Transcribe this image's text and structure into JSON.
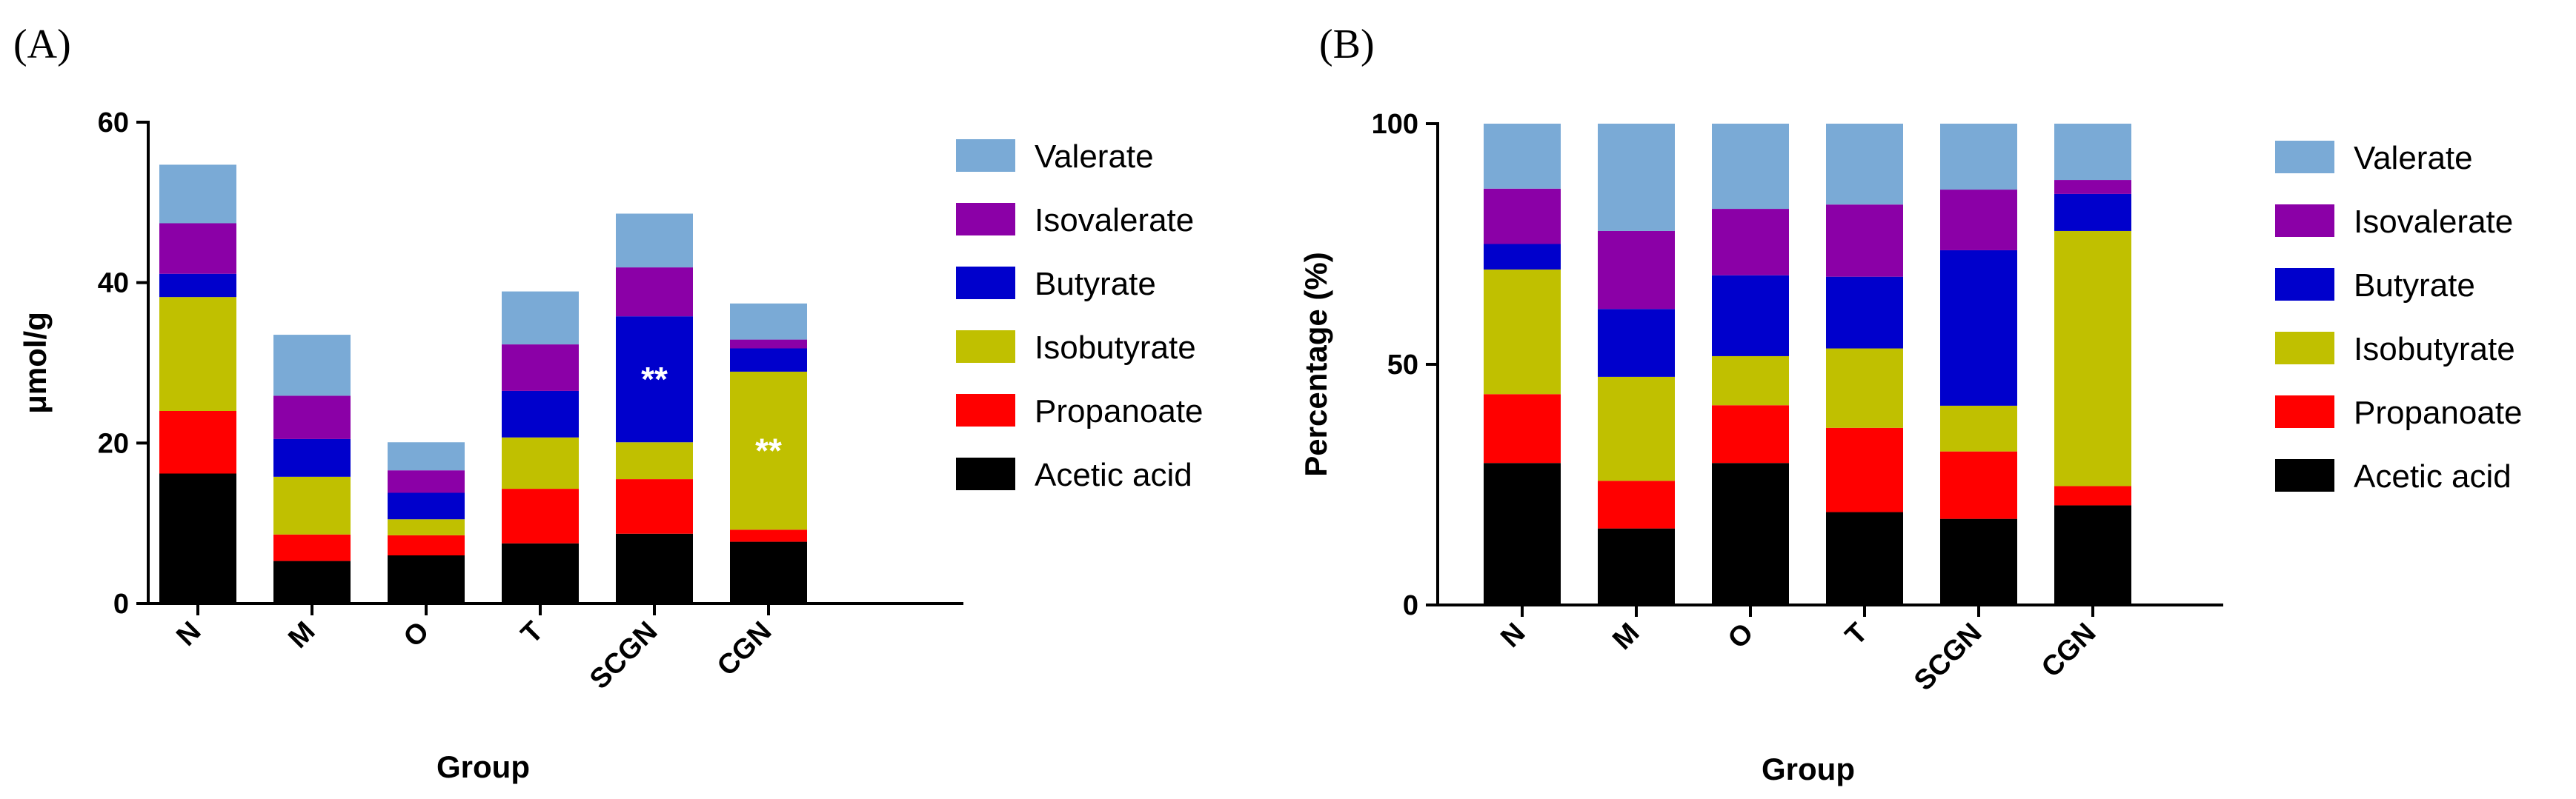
{
  "chart_data": [
    {
      "panel_label": "(A)",
      "type": "bar",
      "stacked": true,
      "categories": [
        "N",
        "M",
        "O",
        "T",
        "SCGN",
        "CGN"
      ],
      "xlabel": "Group",
      "ylabel": "μmol/g",
      "ylim": [
        0,
        60
      ],
      "yticks": [
        0,
        20,
        40,
        60
      ],
      "legend_position": "right",
      "series": [
        {
          "name": "Acetic acid",
          "color": "#000000",
          "values": [
            16.2,
            5.3,
            6.0,
            7.5,
            8.7,
            7.7
          ]
        },
        {
          "name": "Propanoate",
          "color": "#ff0000",
          "values": [
            7.8,
            3.3,
            2.5,
            6.8,
            6.8,
            1.5
          ]
        },
        {
          "name": "Isobutyrate",
          "color": "#c0c000",
          "values": [
            14.2,
            7.2,
            2.0,
            6.4,
            4.6,
            19.7
          ]
        },
        {
          "name": "Butyrate",
          "color": "#0000cc",
          "values": [
            2.9,
            4.7,
            3.3,
            5.8,
            15.7,
            2.9
          ]
        },
        {
          "name": "Isovalerate",
          "color": "#8b00a7",
          "values": [
            6.3,
            5.4,
            2.8,
            5.8,
            6.1,
            1.1
          ]
        },
        {
          "name": "Valerate",
          "color": "#7aaad6",
          "values": [
            7.3,
            7.6,
            3.5,
            6.6,
            6.7,
            4.5
          ]
        }
      ],
      "annotations": [
        {
          "text": "**",
          "category": "SCGN",
          "series": "Butyrate"
        },
        {
          "text": "**",
          "category": "CGN",
          "series": "Isobutyrate"
        }
      ]
    },
    {
      "panel_label": "(B)",
      "type": "bar",
      "stacked": true,
      "categories": [
        "N",
        "M",
        "O",
        "T",
        "SCGN",
        "CGN"
      ],
      "xlabel": "Group",
      "ylabel": "Percentage (%)",
      "ylim": [
        0,
        100
      ],
      "yticks": [
        0,
        50,
        100
      ],
      "legend_position": "right",
      "series": [
        {
          "name": "Acetic acid",
          "color": "#000000",
          "values": [
            29.5,
            15.9,
            29.5,
            19.3,
            17.9,
            20.7
          ]
        },
        {
          "name": "Propanoate",
          "color": "#ff0000",
          "values": [
            14.3,
            9.9,
            12.0,
            17.5,
            14.0,
            4.0
          ]
        },
        {
          "name": "Isobutyrate",
          "color": "#c0c000",
          "values": [
            25.9,
            21.6,
            10.2,
            16.5,
            9.5,
            53.0
          ]
        },
        {
          "name": "Butyrate",
          "color": "#0000cc",
          "values": [
            5.3,
            14.1,
            16.8,
            14.9,
            32.3,
            7.7
          ]
        },
        {
          "name": "Isovalerate",
          "color": "#8b00a7",
          "values": [
            11.5,
            16.2,
            13.8,
            15.0,
            12.6,
            2.9
          ]
        },
        {
          "name": "Valerate",
          "color": "#7aaad6",
          "values": [
            13.5,
            22.3,
            17.7,
            16.8,
            13.7,
            11.7
          ]
        }
      ],
      "annotations": []
    }
  ]
}
